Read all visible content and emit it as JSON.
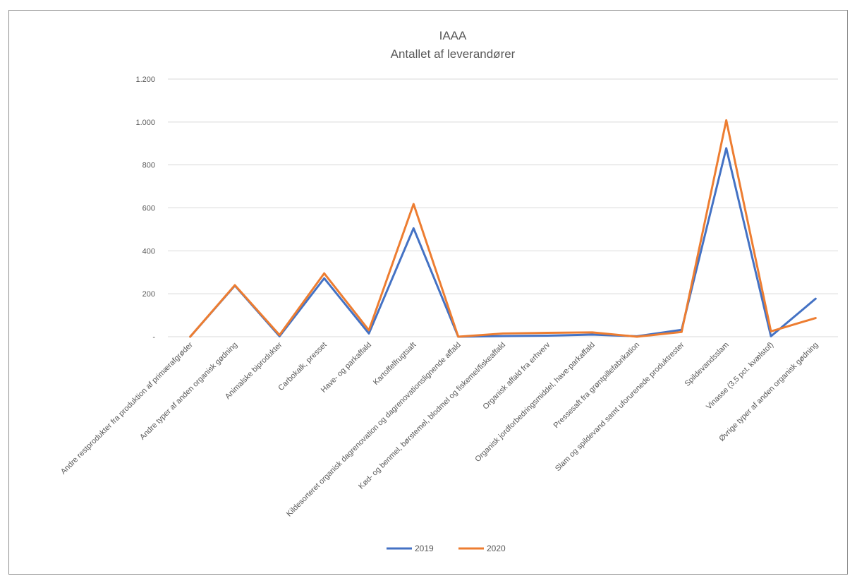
{
  "chart_data": {
    "type": "line",
    "title": "IAAA",
    "subtitle": "Antallet af leverandører",
    "xlabel": "",
    "ylabel": "",
    "ylim": [
      0,
      1200
    ],
    "yticks": [
      0,
      200,
      400,
      600,
      800,
      1000,
      1200
    ],
    "ytick_labels": [
      "-",
      "200",
      "400",
      "600",
      "800",
      "1.000",
      "1.200"
    ],
    "grid": true,
    "legend_position": "bottom",
    "categories": [
      "Andre restprodukter fra produktion af primærafgrøder",
      "Andre typer af anden organisk gødning",
      "Animalske biprodukter",
      "Carbokalk, presset",
      "Have- og parkaffald",
      "Kartoffelfrugtsaft",
      "Kildesorteret organisk dagrenovation og dagrenovationslignende affald",
      "Kød- og benmel, børstemel, blodmel og fiskemel/fiskeaffald",
      "Organisk affald fra erhverv",
      "Organisk jordforbedringsmiddel, have-parkaffald",
      "Pressesaft fra grøntpillefabrikation",
      "Slam og spildevand samt uforurenede produktrester",
      "Spildevandsslam",
      "Vinasse (3,5 pct. kvælstof)",
      "Øvrige typer af anden organisk gødning"
    ],
    "series": [
      {
        "name": "2019",
        "color": "#4472c4",
        "values": [
          0,
          238,
          2,
          272,
          15,
          505,
          0,
          3,
          5,
          10,
          2,
          32,
          878,
          2,
          177
        ]
      },
      {
        "name": "2020",
        "color": "#ed7d31",
        "values": [
          0,
          240,
          8,
          295,
          30,
          618,
          0,
          15,
          18,
          20,
          0,
          22,
          1008,
          25,
          87
        ]
      }
    ]
  }
}
